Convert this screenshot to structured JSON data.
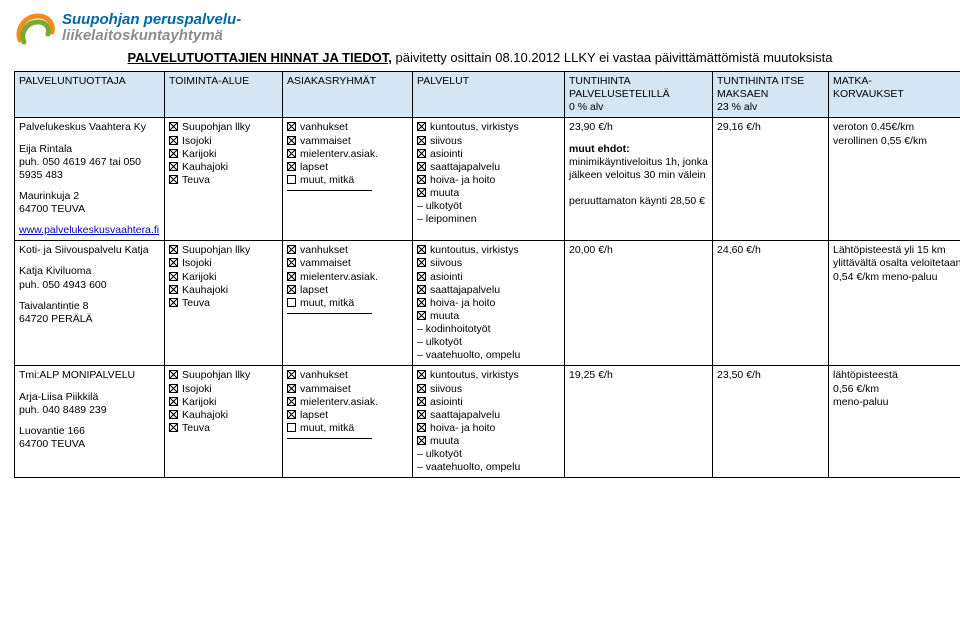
{
  "logo": {
    "line1": "Suupohjan peruspalvelu-",
    "line2": "liikelaitoskuntayhtymä",
    "swirl_colors": [
      "#f28c1e",
      "#7aa935"
    ]
  },
  "page_title": {
    "main": "PALVELUTUOTTAJIEN HINNAT JA TIEDOT,",
    "suffix": " päivitetty osittain 08.10.2012 LLKY ei vastaa päivittämättömistä muutoksista"
  },
  "columns": {
    "provider": "PALVELUNTUOTTAJA",
    "area": "TOIMINTA-ALUE",
    "groups": "ASIAKASRYHMÄT",
    "services": "PALVELUT",
    "hourly": "TUNTIHINTA\nPALVELUSETELILLÄ\n0 % alv",
    "itse": "TUNTIHINTA ITSE\nMAKSAEN\n23 % alv",
    "travel": "MATKA-\nKORVAUKSET"
  },
  "areas": [
    "Suupohjan llky",
    "Isojoki",
    "Karijoki",
    "Kauhajoki",
    "Teuva"
  ],
  "group_items": [
    "vanhukset",
    "vammaiset",
    "mielenterv.asiak.",
    "lapset",
    "muut, mitkä"
  ],
  "service_items": [
    "kuntoutus, virkistys",
    "siivous",
    "asiointi",
    "saattajapalvelu",
    "hoiva- ja hoito",
    "muuta"
  ],
  "rows": [
    {
      "provider": {
        "name": "Palvelukeskus Vaahtera Ky",
        "contact1": "Eija Rintala",
        "phone": "puh. 050 4619 467 tai 050 5935 483",
        "address1": "Maurinkuja 2",
        "address2": "64700 TEUVA",
        "link": "www.palvelukeskusvaahtera.fi"
      },
      "groups_checked": [
        true,
        true,
        true,
        true,
        false
      ],
      "services_checked": [
        true,
        true,
        true,
        true,
        true,
        true
      ],
      "service_extra": [
        "– ulkotyöt",
        "– leipominen"
      ],
      "hourly": {
        "price": "23,90 €/h",
        "terms_title": "muut ehdot:",
        "terms": [
          "minimikäyntiveloitus 1h, jonka jälkeen veloitus 30 min välein",
          "",
          "peruuttamaton käynti 28,50 €"
        ]
      },
      "itse": "29,16 €/h",
      "travel": [
        "veroton 0.45€/km",
        "verollinen 0,55 €/km"
      ]
    },
    {
      "provider": {
        "name": "Koti- ja Siivouspalvelu Katja",
        "contact1": "Katja Kiviluoma",
        "phone": "puh. 050 4943 600",
        "address1": "Taivalantintie 8",
        "address2": "64720 PERÄLÄ",
        "link": ""
      },
      "groups_checked": [
        true,
        true,
        true,
        true,
        false
      ],
      "services_checked": [
        true,
        true,
        true,
        true,
        true,
        true
      ],
      "service_extra": [
        "– kodinhoitotyöt",
        "– ulkotyöt",
        "– vaatehuolto, ompelu"
      ],
      "hourly": {
        "price": "20,00 €/h",
        "terms_title": "",
        "terms": []
      },
      "itse": "24,60 €/h",
      "travel": [
        "Lähtöpisteestä yli 15 km ylittävältä osalta veloitetaan 0,54 €/km meno-paluu"
      ]
    },
    {
      "provider": {
        "name": "Tmi:ALP MONIPALVELU",
        "contact1": "Arja-Liisa Piikkilä",
        "phone": "puh. 040 8489 239",
        "address1": "Luovantie 166",
        "address2": "64700 TEUVA",
        "link": ""
      },
      "groups_checked": [
        true,
        true,
        true,
        true,
        false
      ],
      "services_checked": [
        true,
        true,
        true,
        true,
        true,
        true
      ],
      "service_extra": [
        "– ulkotyöt",
        "– vaatehuolto, ompelu"
      ],
      "hourly": {
        "price": "19,25 €/h",
        "terms_title": "",
        "terms": []
      },
      "itse": "23,50 €/h",
      "travel": [
        "lähtöpisteestä",
        "0,56 €/km",
        "meno-paluu"
      ]
    }
  ]
}
